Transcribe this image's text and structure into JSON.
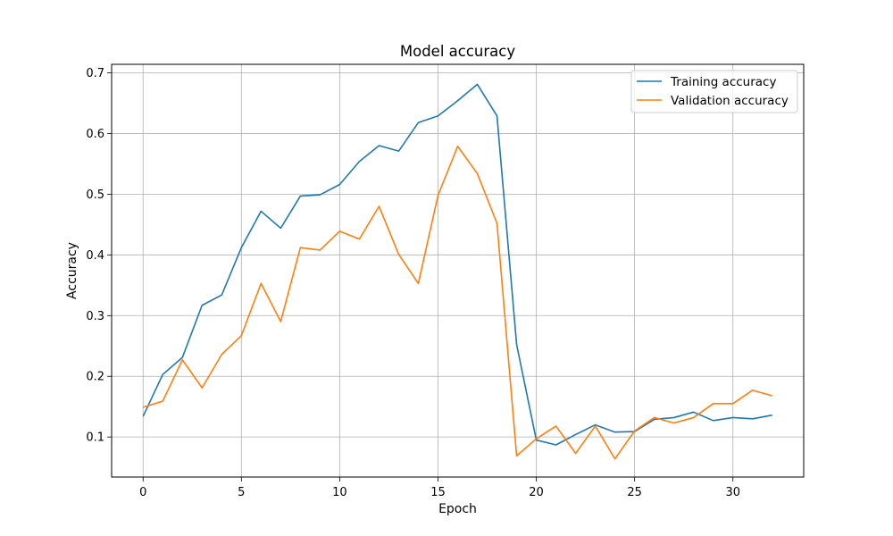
{
  "chart_data": {
    "type": "line",
    "title": "Model accuracy",
    "xlabel": "Epoch",
    "ylabel": "Accuracy",
    "xlim": [
      -1.6,
      33.6
    ],
    "ylim": [
      0.034,
      0.714
    ],
    "xticks": [
      0,
      5,
      10,
      15,
      20,
      25,
      30
    ],
    "yticks": [
      0.1,
      0.2,
      0.3,
      0.4,
      0.5,
      0.6,
      0.7
    ],
    "grid": true,
    "legend_position": "top-right",
    "x": [
      0,
      1,
      2,
      3,
      4,
      5,
      6,
      7,
      8,
      9,
      10,
      11,
      12,
      13,
      14,
      15,
      16,
      17,
      18,
      19,
      20,
      21,
      22,
      23,
      24,
      25,
      26,
      27,
      28,
      29,
      30,
      31,
      32
    ],
    "series": [
      {
        "name": "Training accuracy",
        "color": "#1f77b4",
        "values": [
          0.134,
          0.203,
          0.231,
          0.317,
          0.334,
          0.412,
          0.472,
          0.444,
          0.497,
          0.499,
          0.516,
          0.554,
          0.58,
          0.571,
          0.618,
          0.629,
          0.654,
          0.681,
          0.629,
          0.252,
          0.095,
          0.087,
          0.104,
          0.12,
          0.108,
          0.109,
          0.129,
          0.132,
          0.141,
          0.127,
          0.132,
          0.13,
          0.136
        ]
      },
      {
        "name": "Validation accuracy",
        "color": "#ff7f0e",
        "values": [
          0.149,
          0.159,
          0.227,
          0.181,
          0.236,
          0.267,
          0.353,
          0.29,
          0.412,
          0.408,
          0.439,
          0.426,
          0.48,
          0.401,
          0.353,
          0.498,
          0.579,
          0.534,
          0.452,
          0.069,
          0.097,
          0.118,
          0.073,
          0.118,
          0.064,
          0.11,
          0.132,
          0.123,
          0.132,
          0.155,
          0.155,
          0.177,
          0.168
        ]
      }
    ]
  }
}
